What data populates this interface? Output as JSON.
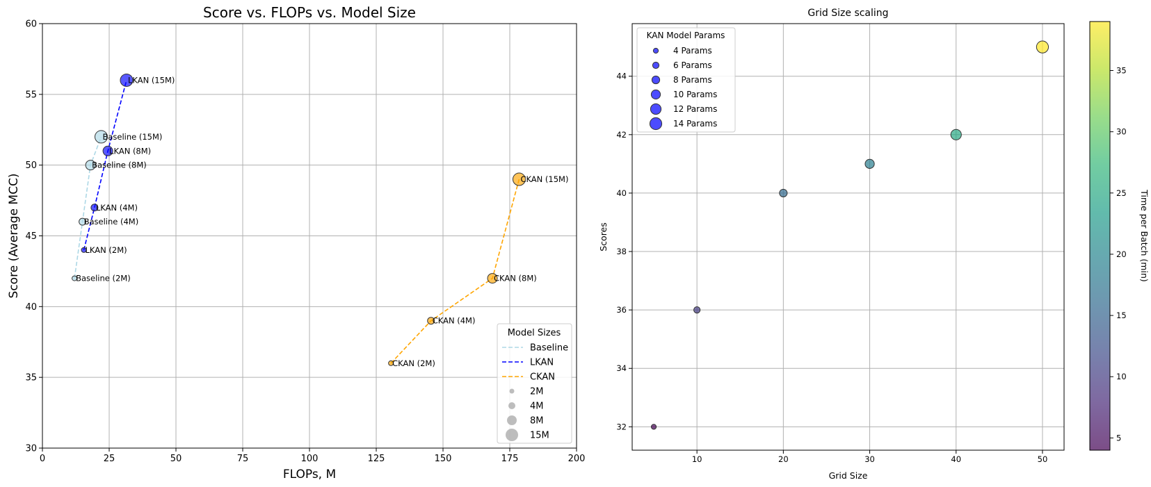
{
  "chart_data": [
    {
      "type": "scatter",
      "title": "Score vs. FLOPs vs. Model Size",
      "xlabel": "FLOPs, M",
      "ylabel": "Score (Average MCC)",
      "xlim": [
        0,
        200
      ],
      "ylim": [
        30,
        60
      ],
      "xticks": [
        "0",
        "25",
        "50",
        "75",
        "100",
        "125",
        "150",
        "175",
        "200"
      ],
      "yticks": [
        "30",
        "35",
        "40",
        "45",
        "50",
        "55",
        "60"
      ],
      "grid": true,
      "legend_title": "Model Sizes",
      "legend_position": "lower right",
      "series": [
        {
          "name": "Baseline",
          "color": "#add8e6",
          "line_style": "dashed",
          "points": [
            {
              "x": 12,
              "y": 42,
              "size": "2M",
              "label": "Baseline (2M)"
            },
            {
              "x": 15,
              "y": 46,
              "size": "4M",
              "label": "Baseline (4M)"
            },
            {
              "x": 18,
              "y": 50,
              "size": "8M",
              "label": "Baseline (8M)"
            },
            {
              "x": 22,
              "y": 52,
              "size": "15M",
              "label": "Baseline (15M)"
            }
          ]
        },
        {
          "name": "LKAN",
          "color": "#0000ff",
          "line_style": "dashed",
          "points": [
            {
              "x": 15.5,
              "y": 44,
              "size": "2M",
              "label": "LKAN (2M)"
            },
            {
              "x": 19.5,
              "y": 47,
              "size": "4M",
              "label": "LKAN (4M)"
            },
            {
              "x": 24.5,
              "y": 51,
              "size": "8M",
              "label": "LKAN (8M)"
            },
            {
              "x": 31.5,
              "y": 56,
              "size": "15M",
              "label": "LKAN (15M)"
            }
          ]
        },
        {
          "name": "CKAN",
          "color": "#ffa500",
          "line_style": "dashed",
          "points": [
            {
              "x": 130.5,
              "y": 36,
              "size": "2M",
              "label": "CKAN (2M)"
            },
            {
              "x": 145.5,
              "y": 39,
              "size": "4M",
              "label": "CKAN (4M)"
            },
            {
              "x": 168.5,
              "y": 42,
              "size": "8M",
              "label": "CKAN (8M)"
            },
            {
              "x": 178.5,
              "y": 49,
              "size": "15M",
              "label": "CKAN (15M)"
            }
          ]
        }
      ],
      "size_legend": [
        "2M",
        "4M",
        "8M",
        "15M"
      ]
    },
    {
      "type": "scatter",
      "title": "Grid Size scaling",
      "xlabel": "Grid Size",
      "ylabel": "Scores",
      "xlim": [
        2.5,
        52.5
      ],
      "ylim": [
        31.2,
        45.8
      ],
      "xticks": [
        "10",
        "20",
        "30",
        "40",
        "50"
      ],
      "yticks": [
        "32",
        "34",
        "36",
        "38",
        "40",
        "42",
        "44"
      ],
      "grid": true,
      "legend_title": "KAN Model Params",
      "legend_position": "upper left",
      "legend_entries": [
        "4 Params",
        "6 Params",
        "8 Params",
        "10 Params",
        "12 Params",
        "14 Params"
      ],
      "legend_color": "#0000ff",
      "colorbar": {
        "label": "Time per Batch (min)",
        "colormap": "viridis",
        "range": [
          4,
          39
        ],
        "ticks": [
          "5",
          "10",
          "15",
          "20",
          "25",
          "30",
          "35"
        ]
      },
      "points": [
        {
          "x": 5,
          "y": 32,
          "params": 4,
          "time": 4
        },
        {
          "x": 10,
          "y": 36,
          "params": 6,
          "time": 10
        },
        {
          "x": 20,
          "y": 40,
          "params": 8,
          "time": 16
        },
        {
          "x": 30,
          "y": 41,
          "params": 10,
          "time": 19
        },
        {
          "x": 40,
          "y": 42,
          "params": 12,
          "time": 25
        },
        {
          "x": 50,
          "y": 45,
          "params": 14,
          "time": 39
        }
      ]
    }
  ]
}
